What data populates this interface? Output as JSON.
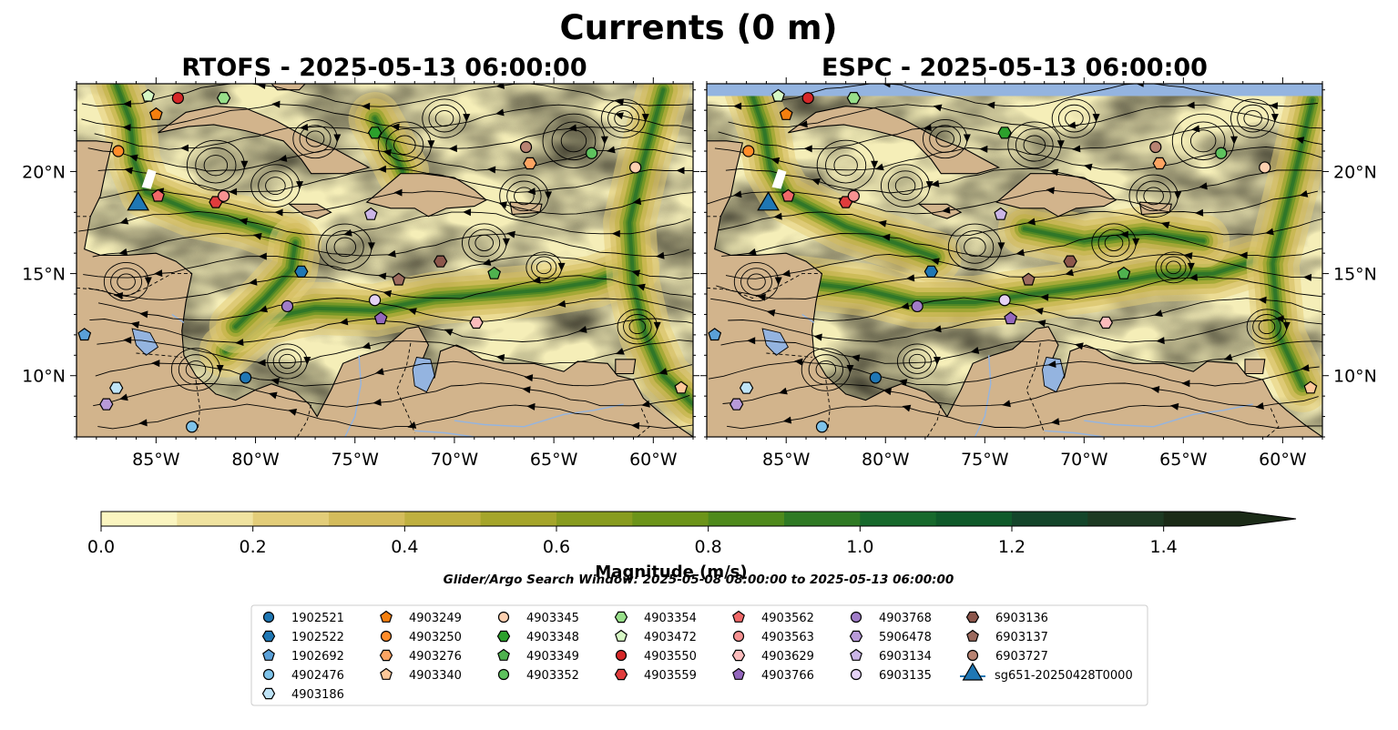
{
  "figure": {
    "suptitle": "Currents (0 m)",
    "search_window": "Glider/Argo Search Window: 2025-05-08 08:00:00 to 2025-05-13 06:00:00"
  },
  "panels": [
    {
      "title": "RTOFS - 2025-05-13 06:00:00"
    },
    {
      "title": "ESPC - 2025-05-13 06:00:00"
    }
  ],
  "map_extent": {
    "lon": [
      -89.0,
      -58.0
    ],
    "lat": [
      7.0,
      24.3
    ]
  },
  "axes": {
    "x_ticks": [
      -85,
      -80,
      -75,
      -70,
      -65,
      -60
    ],
    "x_tick_labels": [
      "85°W",
      "80°W",
      "75°W",
      "70°W",
      "65°W",
      "60°W"
    ],
    "y_ticks": [
      10,
      15,
      20
    ],
    "y_tick_labels": [
      "10°N",
      "15°N",
      "20°N"
    ]
  },
  "colors": {
    "land": "#d2b48c",
    "water_bodies": "#94b4e0",
    "sea_low": "#f5eeb8",
    "sea_high": "#163a1e"
  },
  "colorbar": {
    "label": "Magnitude (m/s)",
    "ticks": [
      "0.0",
      "0.2",
      "0.4",
      "0.6",
      "0.8",
      "1.0",
      "1.2",
      "1.4"
    ],
    "min": 0.0,
    "max": 1.5,
    "step": 0.1,
    "extend": "max",
    "colors": [
      "#fbf5c0",
      "#f0e3a0",
      "#e3cd79",
      "#d4bc5c",
      "#bfb040",
      "#a5a52a",
      "#889c1f",
      "#6c9419",
      "#4f8a1c",
      "#2f7a24",
      "#17692c",
      "#0f5a2a",
      "#14452a",
      "#1d3a22",
      "#1b2b17"
    ]
  },
  "chart_data": {
    "type": "scatter",
    "title": "Currents (0 m)",
    "xlabel": "",
    "ylabel": "",
    "xlim": [
      -89.0,
      -58.0
    ],
    "ylim": [
      7.0,
      24.3
    ],
    "series": [
      {
        "name": "1902521",
        "marker": "circle",
        "color": "#1f77b4",
        "lon": -80.5,
        "lat": 9.9
      },
      {
        "name": "1902522",
        "marker": "hexagon",
        "color": "#1f77b4",
        "lon": -77.7,
        "lat": 15.1
      },
      {
        "name": "1902692",
        "marker": "pentagon",
        "color": "#5aa0d8",
        "lon": -88.6,
        "lat": 12.0
      },
      {
        "name": "4902476",
        "marker": "circle",
        "color": "#7ec3ea",
        "lon": -83.2,
        "lat": 7.5
      },
      {
        "name": "4903186",
        "marker": "hexagon",
        "color": "#bfe4f7",
        "lon": -87.0,
        "lat": 9.4
      },
      {
        "name": "4903249",
        "marker": "pentagon",
        "color": "#f57f0e",
        "lon": -85.0,
        "lat": 22.8
      },
      {
        "name": "4903250",
        "marker": "circle",
        "color": "#ff8c2a",
        "lon": -86.9,
        "lat": 21.0
      },
      {
        "name": "4903276",
        "marker": "hexagon",
        "color": "#fda462",
        "lon": -66.2,
        "lat": 20.4
      },
      {
        "name": "4903340",
        "marker": "pentagon",
        "color": "#fdc899",
        "lon": -58.6,
        "lat": 9.4
      },
      {
        "name": "4903345",
        "marker": "circle",
        "color": "#fdd0b0",
        "lon": -60.9,
        "lat": 20.2
      },
      {
        "name": "4903348",
        "marker": "hexagon",
        "color": "#2ca02c",
        "lon": -74.0,
        "lat": 21.9
      },
      {
        "name": "4903349",
        "marker": "pentagon",
        "color": "#4fb24f",
        "lon": -68.0,
        "lat": 15.0
      },
      {
        "name": "4903352",
        "marker": "circle",
        "color": "#5ec25e",
        "lon": -63.1,
        "lat": 20.9
      },
      {
        "name": "4903354",
        "marker": "hexagon",
        "color": "#98df8a",
        "lon": -81.6,
        "lat": 23.6
      },
      {
        "name": "4903472",
        "marker": "pentagon",
        "color": "#d6f7c4",
        "lon": -85.4,
        "lat": 23.7
      },
      {
        "name": "4903550",
        "marker": "circle",
        "color": "#d62728",
        "lon": -83.9,
        "lat": 23.6
      },
      {
        "name": "4903559",
        "marker": "hexagon",
        "color": "#e03c3c",
        "lon": -82.0,
        "lat": 18.5
      },
      {
        "name": "4903562",
        "marker": "pentagon",
        "color": "#f06868",
        "lon": -84.9,
        "lat": 18.8
      },
      {
        "name": "4903563",
        "marker": "circle",
        "color": "#f79292",
        "lon": -81.6,
        "lat": 18.8
      },
      {
        "name": "4903629",
        "marker": "hexagon",
        "color": "#fbbcbc",
        "lon": -68.9,
        "lat": 12.6
      },
      {
        "name": "4903766",
        "marker": "pentagon",
        "color": "#9467bd",
        "lon": -73.7,
        "lat": 12.8
      },
      {
        "name": "4903768",
        "marker": "circle",
        "color": "#a07cc8",
        "lon": -78.4,
        "lat": 13.4
      },
      {
        "name": "5906478",
        "marker": "hexagon",
        "color": "#b89ad8",
        "lon": -87.5,
        "lat": 8.6
      },
      {
        "name": "6903134",
        "marker": "pentagon",
        "color": "#cbb5e6",
        "lon": -74.2,
        "lat": 17.9
      },
      {
        "name": "6903135",
        "marker": "circle",
        "color": "#e5d2f5",
        "lon": -74.0,
        "lat": 13.7
      },
      {
        "name": "6903136",
        "marker": "hexagon",
        "color": "#8c564b",
        "lon": -70.7,
        "lat": 15.6
      },
      {
        "name": "6903137",
        "marker": "pentagon",
        "color": "#9c6a5e",
        "lon": -72.8,
        "lat": 14.7
      },
      {
        "name": "6903727",
        "marker": "circle",
        "color": "#b88372",
        "lon": -66.4,
        "lat": 21.2
      },
      {
        "name": "sg651-20250428T0000",
        "marker": "triangle",
        "color": "#1f77b4",
        "lon": -85.9,
        "lat": 18.4
      }
    ]
  },
  "legend": {
    "placement": "bottom-center",
    "columns": 8
  }
}
